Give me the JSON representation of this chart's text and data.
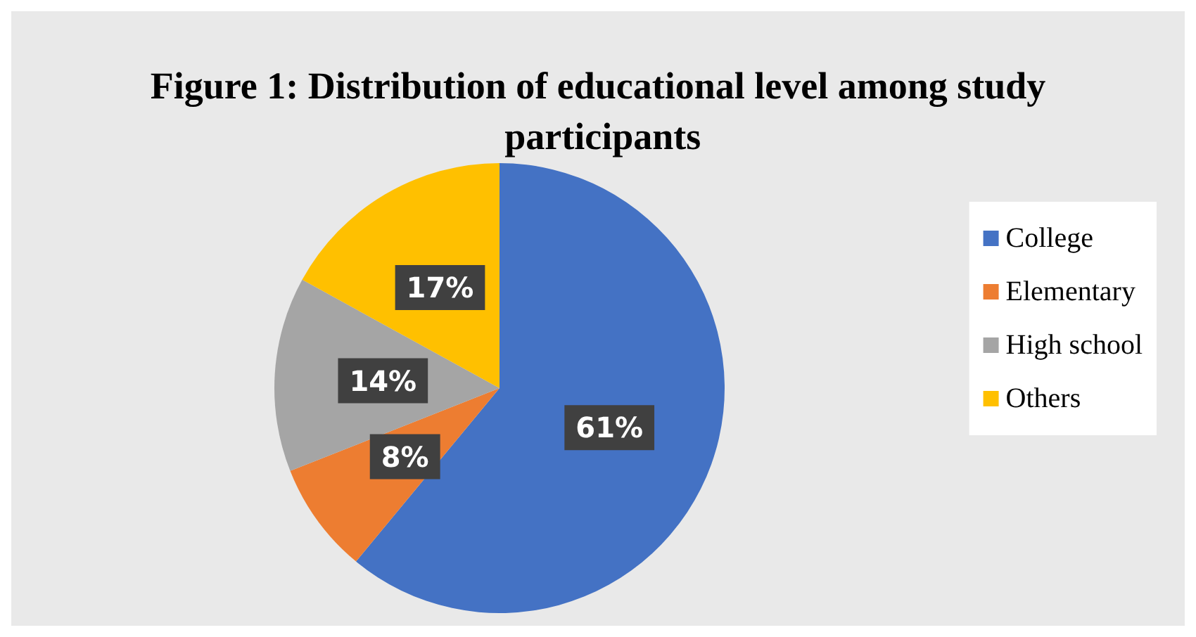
{
  "chart_data": {
    "type": "pie",
    "title": "Figure 1: Distribution of educational level among study participants",
    "categories": [
      "College",
      "Elementary",
      "High school",
      "Others"
    ],
    "values": [
      61,
      8,
      14,
      17
    ],
    "value_labels": [
      "61%",
      "8%",
      "14%",
      "17%"
    ],
    "colors": [
      "#4472c4",
      "#ed7d31",
      "#a5a5a5",
      "#ffc000"
    ],
    "legend": "right"
  }
}
